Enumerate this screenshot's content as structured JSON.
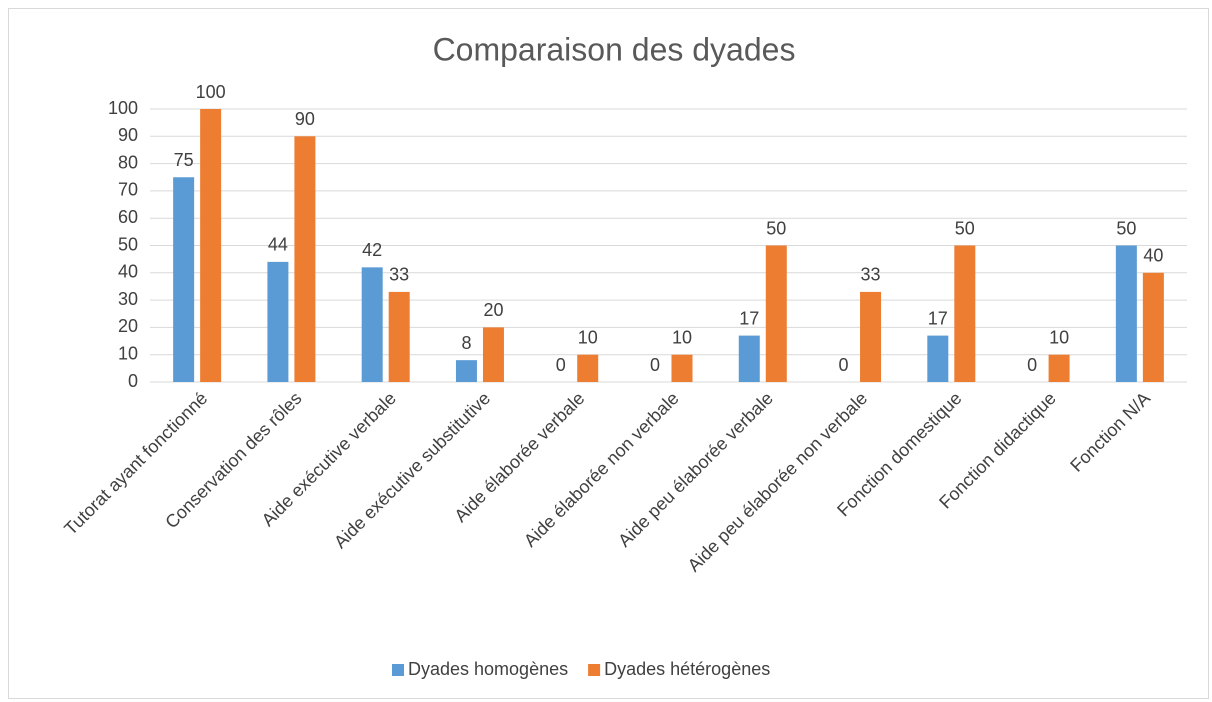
{
  "chart_data": {
    "type": "bar",
    "title": "Comparaison des dyades",
    "categories": [
      "Tutorat ayant fonctionné",
      "Conservation des rôles",
      "Aide exécutive verbale",
      "Aide exécutive substitutive",
      "Aide élaborée verbale",
      "Aide élaborée non verbale",
      "Aide peu élaborée verbale",
      "Aide peu élaborée non verbale",
      "Fonction domestique",
      "Fonction didactique",
      "Fonction N/A"
    ],
    "series": [
      {
        "name": "Dyades homogènes",
        "color": "#5b9bd5",
        "values": [
          75,
          44,
          42,
          8,
          0,
          0,
          17,
          0,
          17,
          0,
          50
        ]
      },
      {
        "name": "Dyades hétérogènes",
        "color": "#ed7d31",
        "values": [
          100,
          90,
          33,
          20,
          10,
          10,
          50,
          33,
          50,
          10,
          40
        ]
      }
    ],
    "ylim": [
      0,
      100
    ],
    "yticks": [
      0,
      10,
      20,
      30,
      40,
      50,
      60,
      70,
      80,
      90,
      100
    ],
    "grid": true,
    "legend": "bottom"
  }
}
